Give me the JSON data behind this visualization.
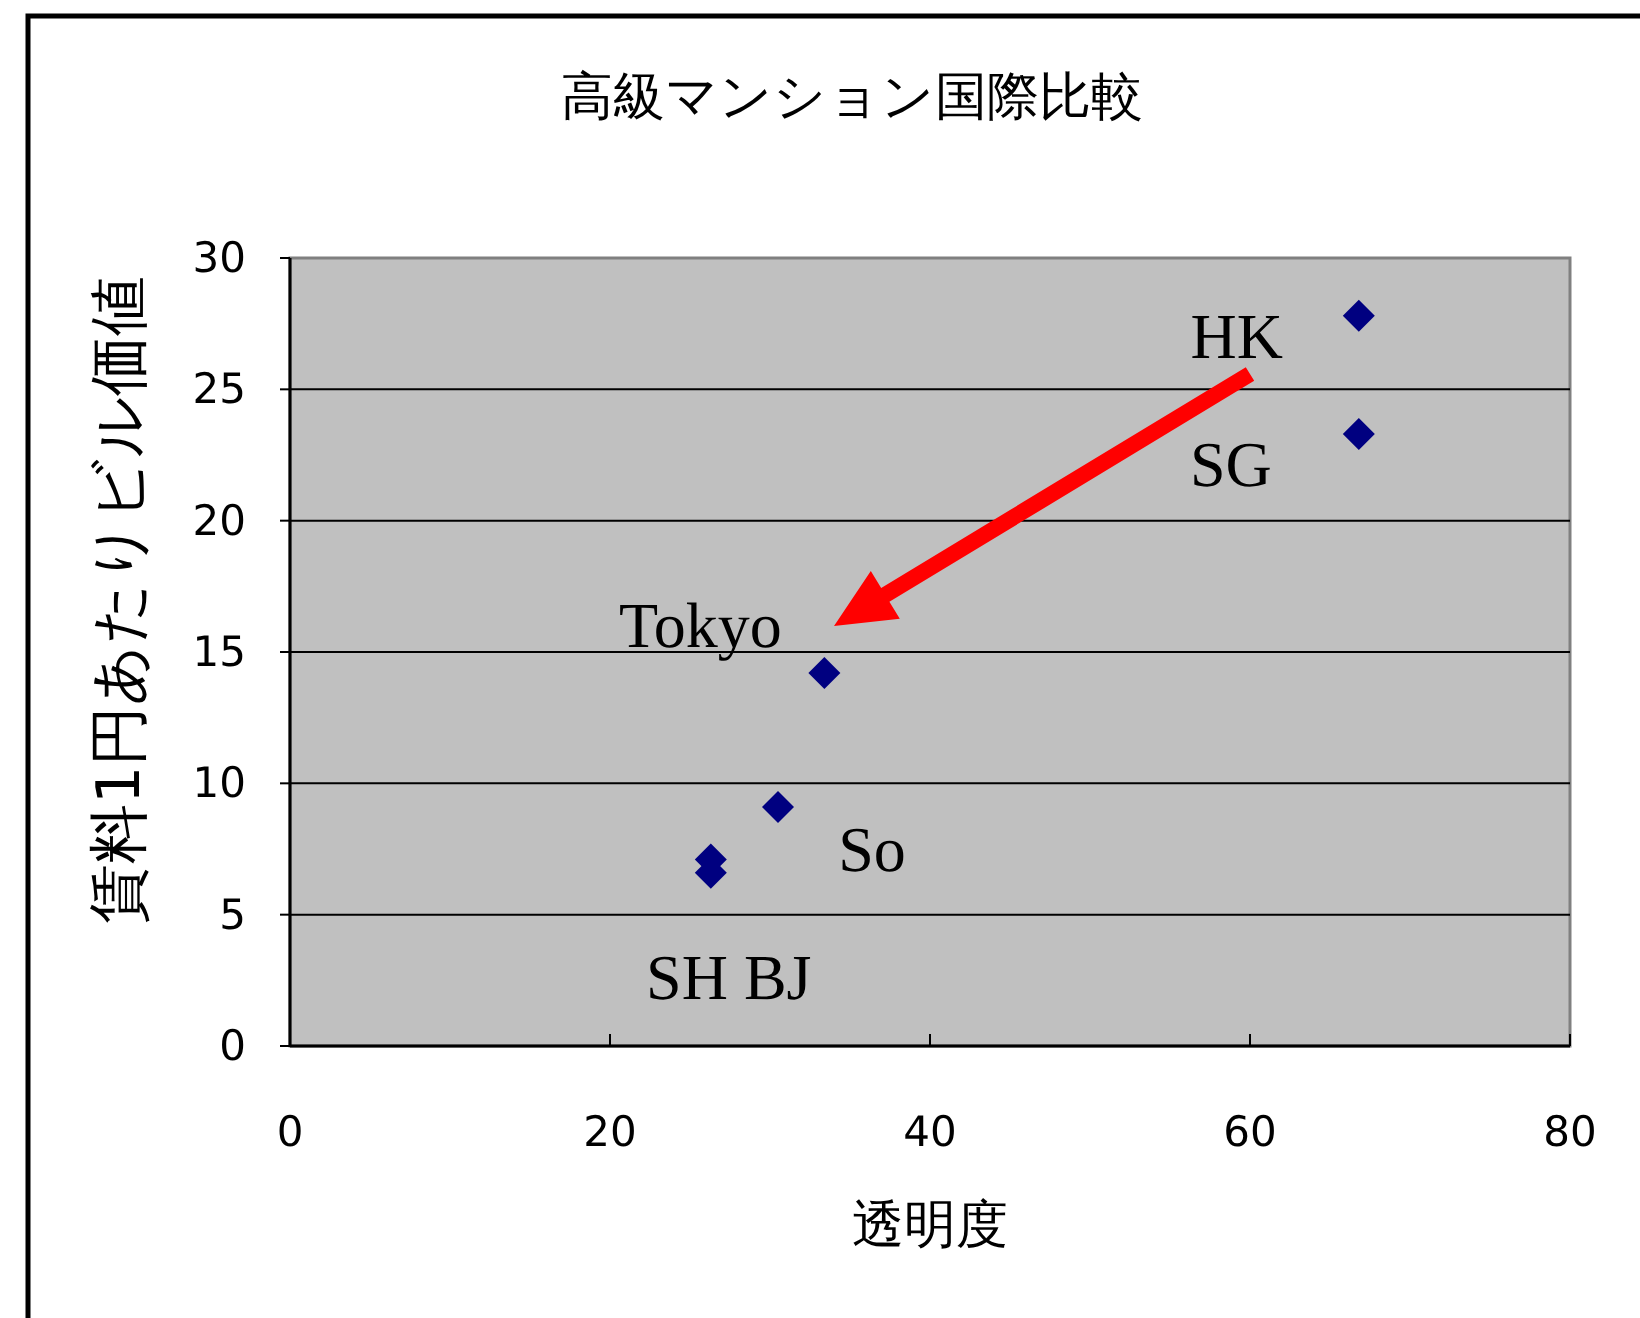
{
  "chart_data": {
    "type": "scatter",
    "title": "高級マンション国際比較",
    "xlabel": "透明度",
    "ylabel": "賃料1円あたりビル価値",
    "x": [
      66.8,
      66.8,
      33.4,
      30.5,
      26.3,
      26.3
    ],
    "values": [
      27.8,
      23.3,
      14.2,
      9.1,
      7.1,
      6.6
    ],
    "color": "#000080",
    "marker": "diamond",
    "xlim": [
      0,
      80
    ],
    "xticks": [
      0,
      20,
      40,
      60,
      80
    ],
    "ylim": [
      0,
      30
    ],
    "yticks": [
      0,
      5,
      10,
      15,
      20,
      25,
      30
    ],
    "grid": "y",
    "annotations": [
      {
        "text": "HK",
        "x": 66.8,
        "y": 27.8
      },
      {
        "text": "SG",
        "x": 66.8,
        "y": 23.3
      },
      {
        "text": "Tokyo",
        "x": 33.4,
        "y": 14.2
      },
      {
        "text": "So",
        "x": 30.5,
        "y": 9.1
      },
      {
        "text": "SH BJ",
        "x": 26.3,
        "y": 6.6
      }
    ]
  }
}
